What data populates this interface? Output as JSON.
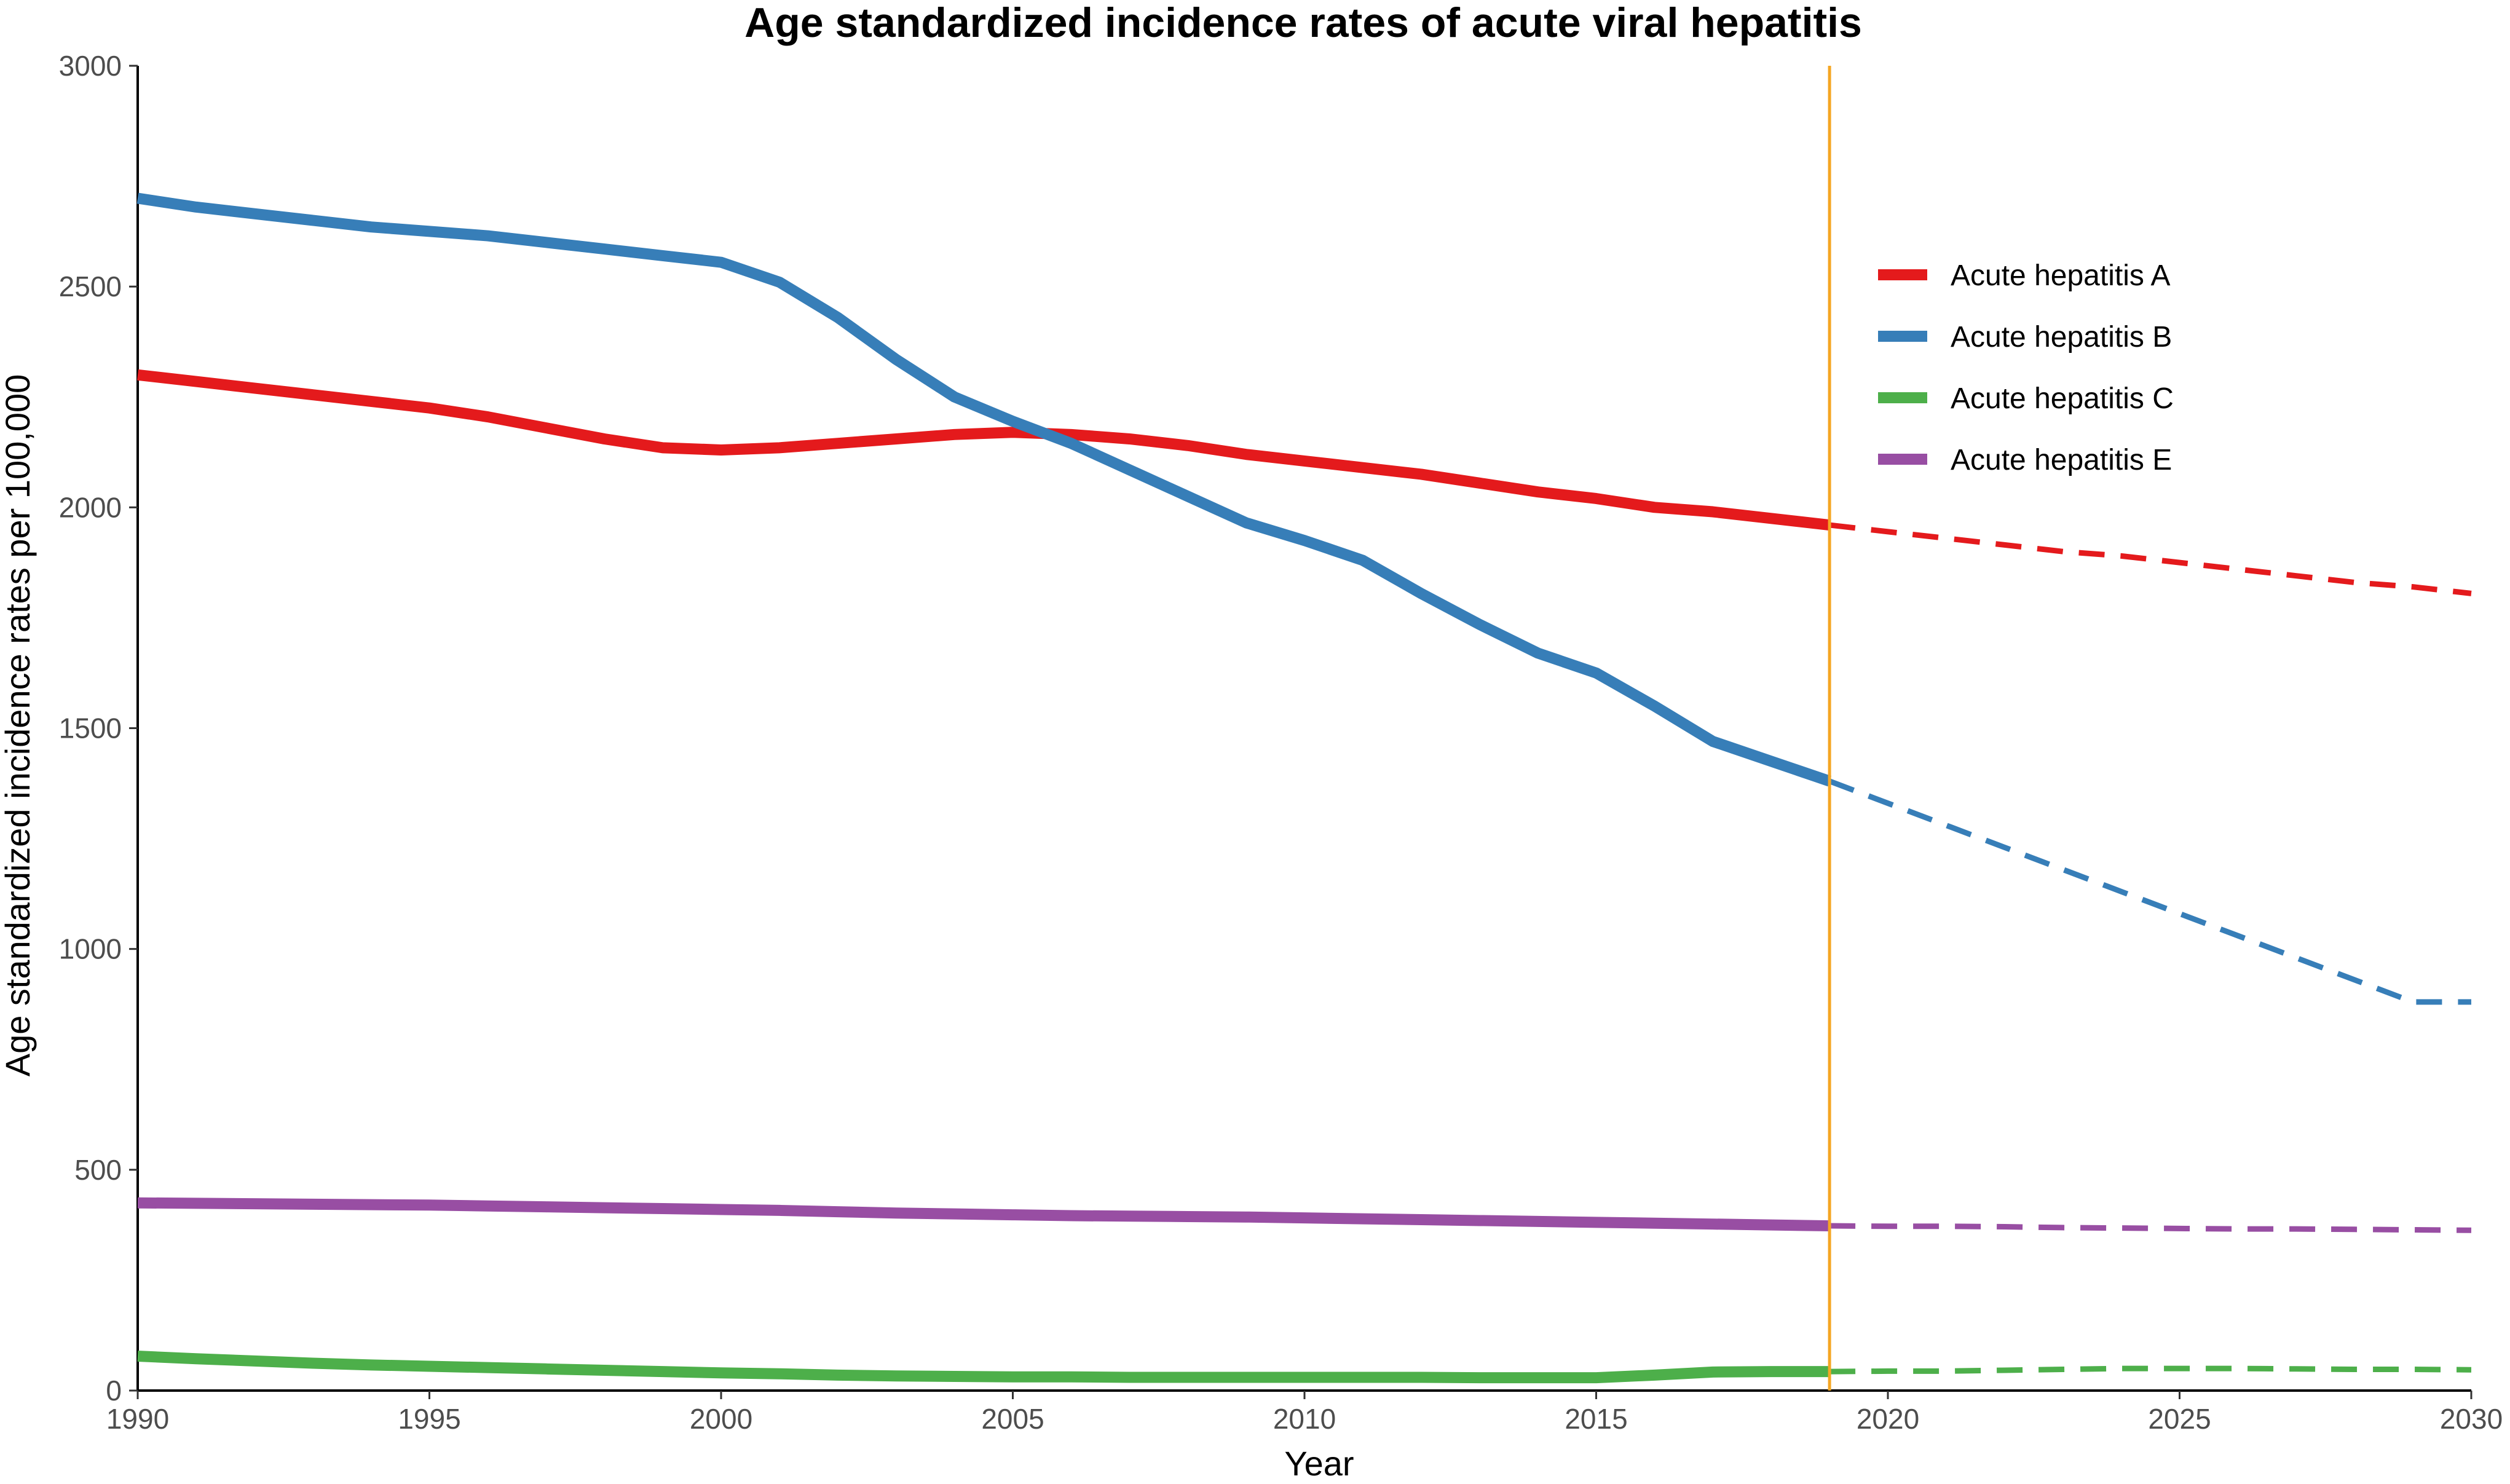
{
  "chart_data": {
    "type": "line",
    "title": "Age standardized incidence rates of acute viral hepatitis",
    "xlabel": "Year",
    "ylabel": "Age standardized incidence rates per 100,000",
    "xlim": [
      1990,
      2030
    ],
    "ylim": [
      0,
      3000
    ],
    "xticks": [
      "1990",
      "1995",
      "2000",
      "2005",
      "2010",
      "2015",
      "2020",
      "2025",
      "2030"
    ],
    "yticks": [
      "0",
      "500",
      "1000",
      "1500",
      "2000",
      "2500",
      "3000"
    ],
    "xtick_values": [
      1990,
      1995,
      2000,
      2005,
      2010,
      2015,
      2020,
      2025,
      2030
    ],
    "ytick_values": [
      0,
      500,
      1000,
      1500,
      2000,
      2500,
      3000
    ],
    "projection_start_year": 2019,
    "projection_line_color": "#F5A623",
    "legend_position": "right",
    "series": [
      {
        "name": "Acute hepatitis A",
        "color": "#E41A1C",
        "observed_x": [
          1990,
          1991,
          1992,
          1993,
          1994,
          1995,
          1996,
          1997,
          1998,
          1999,
          2000,
          2001,
          2002,
          2003,
          2004,
          2005,
          2006,
          2007,
          2008,
          2009,
          2010,
          2011,
          2012,
          2013,
          2014,
          2015,
          2016,
          2017,
          2018,
          2019
        ],
        "observed_y": [
          2300,
          2285,
          2270,
          2255,
          2240,
          2225,
          2205,
          2180,
          2155,
          2135,
          2130,
          2135,
          2145,
          2155,
          2165,
          2170,
          2165,
          2155,
          2140,
          2120,
          2105,
          2090,
          2075,
          2055,
          2035,
          2020,
          2000,
          1990,
          1975,
          1960
        ],
        "projected_x": [
          2019,
          2020,
          2021,
          2022,
          2023,
          2024,
          2025,
          2026,
          2027,
          2028,
          2029,
          2030
        ],
        "projected_y": [
          1960,
          1945,
          1930,
          1915,
          1900,
          1890,
          1875,
          1860,
          1845,
          1830,
          1820,
          1805
        ]
      },
      {
        "name": "Acute hepatitis B",
        "color": "#377EB8",
        "observed_x": [
          1990,
          1991,
          1992,
          1993,
          1994,
          1995,
          1996,
          1997,
          1998,
          1999,
          2000,
          2001,
          2002,
          2003,
          2004,
          2005,
          2006,
          2007,
          2008,
          2009,
          2010,
          2011,
          2012,
          2013,
          2014,
          2015,
          2016,
          2017,
          2018,
          2019
        ],
        "observed_y": [
          2700,
          2680,
          2665,
          2650,
          2635,
          2625,
          2615,
          2600,
          2585,
          2570,
          2555,
          2510,
          2430,
          2335,
          2250,
          2195,
          2145,
          2085,
          2025,
          1965,
          1925,
          1880,
          1805,
          1735,
          1670,
          1625,
          1550,
          1470,
          1425,
          1380
        ],
        "projected_x": [
          2019,
          2020,
          2021,
          2022,
          2023,
          2024,
          2025,
          2026,
          2027,
          2028,
          2029,
          2030
        ],
        "projected_y": [
          1380,
          1330,
          1280,
          1230,
          1180,
          1130,
          1080,
          1030,
          980,
          930,
          880,
          880
        ]
      },
      {
        "name": "Acute hepatitis C",
        "color": "#4DAF4A",
        "observed_x": [
          1990,
          1991,
          1992,
          1993,
          1994,
          1995,
          1996,
          1997,
          1998,
          1999,
          2000,
          2001,
          2002,
          2003,
          2004,
          2005,
          2006,
          2007,
          2008,
          2009,
          2010,
          2011,
          2012,
          2013,
          2014,
          2015,
          2016,
          2017,
          2018,
          2019
        ],
        "observed_y": [
          78,
          72,
          67,
          62,
          58,
          55,
          52,
          49,
          46,
          43,
          40,
          38,
          35,
          33,
          32,
          31,
          31,
          30,
          30,
          30,
          30,
          30,
          30,
          29,
          29,
          29,
          35,
          42,
          43,
          43
        ],
        "projected_x": [
          2019,
          2020,
          2021,
          2022,
          2023,
          2024,
          2025,
          2026,
          2027,
          2028,
          2029,
          2030
        ],
        "projected_y": [
          43,
          44,
          44,
          46,
          48,
          50,
          50,
          50,
          49,
          48,
          48,
          47
        ]
      },
      {
        "name": "Acute hepatitis E",
        "color": "#984EA3",
        "observed_x": [
          1990,
          1991,
          1992,
          1993,
          1994,
          1995,
          1996,
          1997,
          1998,
          1999,
          2000,
          2001,
          2002,
          2003,
          2004,
          2005,
          2006,
          2007,
          2008,
          2009,
          2010,
          2011,
          2012,
          2013,
          2014,
          2015,
          2016,
          2017,
          2018,
          2019
        ],
        "observed_y": [
          425,
          424,
          423,
          422,
          421,
          420,
          418,
          416,
          414,
          412,
          410,
          408,
          405,
          402,
          400,
          398,
          396,
          395,
          394,
          393,
          391,
          389,
          387,
          385,
          383,
          381,
          379,
          377,
          375,
          373
        ],
        "projected_x": [
          2019,
          2020,
          2021,
          2022,
          2023,
          2024,
          2025,
          2026,
          2027,
          2028,
          2029,
          2030
        ],
        "projected_y": [
          373,
          372,
          372,
          371,
          369,
          368,
          367,
          366,
          366,
          365,
          364,
          363
        ]
      }
    ]
  }
}
